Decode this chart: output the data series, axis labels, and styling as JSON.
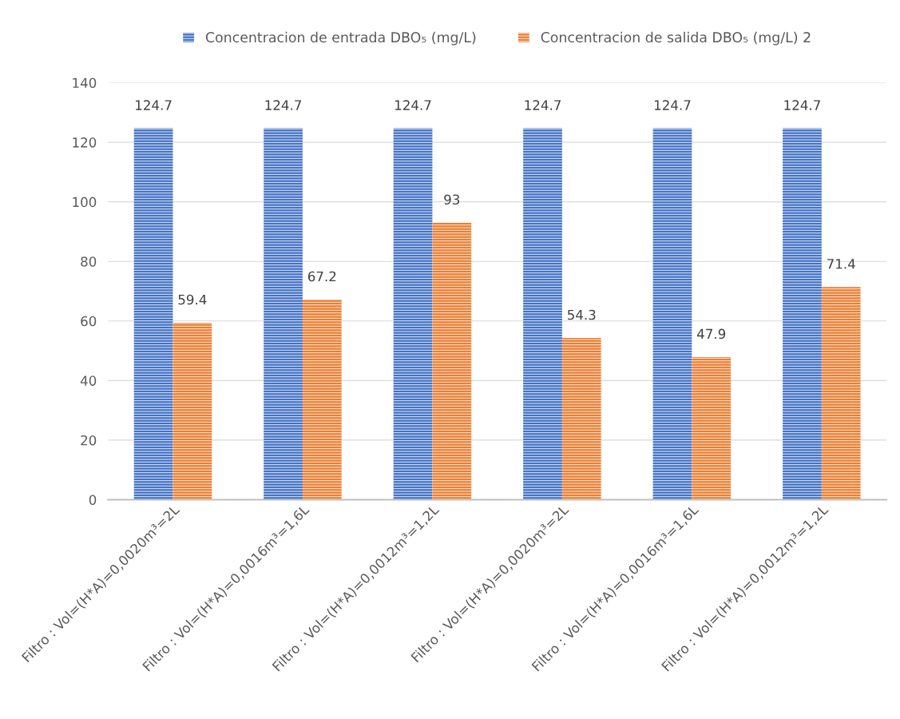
{
  "chart_data": {
    "type": "bar",
    "categories": [
      "Filtro : Vol=(H*A)=0,0020m³=2L",
      "Filtro : Vol=(H*A)=0,0016m³=1,6L",
      "Filtro : Vol=(H*A)=0,0012m³=1,2L",
      "Filtro : Vol=(H*A)=0,0020m³=2L",
      "Filtro : Vol=(H*A)=0,0016m³=1,6L",
      "Filtro : Vol=(H*A)=0,0012m³=1,2L"
    ],
    "series": [
      {
        "name": "Concentracion de entrada DBO₅ (mg/L)",
        "color": "#4472c4",
        "values": [
          124.7,
          124.7,
          124.7,
          124.7,
          124.7,
          124.7
        ]
      },
      {
        "name": "Concentracion de salida DBO₅ (mg/L) 2",
        "color": "#ed7d31",
        "values": [
          59.4,
          67.2,
          93,
          54.3,
          47.9,
          71.4
        ]
      }
    ],
    "ylim": [
      0,
      140
    ],
    "yticks": [
      0,
      20,
      40,
      60,
      80,
      100,
      120,
      140
    ],
    "grid": "y",
    "legend": "top",
    "data_labels": true
  }
}
